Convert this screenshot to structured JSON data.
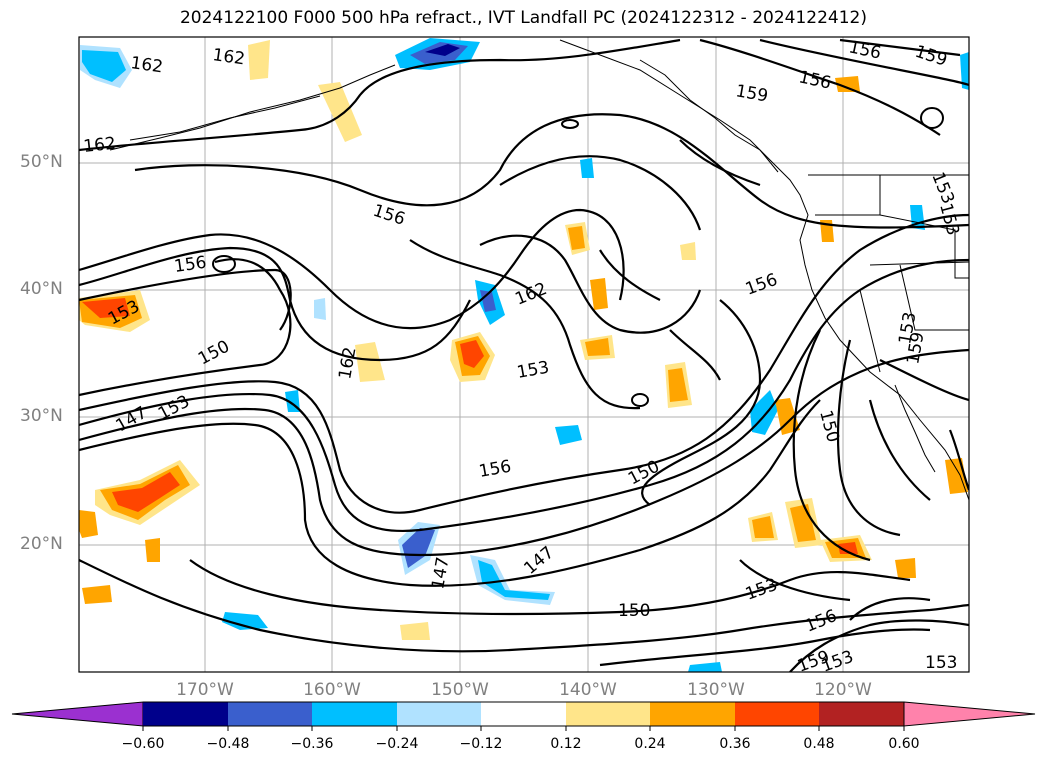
{
  "title": "2024122100 F000 500 hPa refract., IVT Landfall PC (2024122312 - 2024122412)",
  "lat_labels": [
    "50°N",
    "40°N",
    "30°N",
    "20°N"
  ],
  "lon_labels": [
    "170°W",
    "160°W",
    "150°W",
    "140°W",
    "130°W",
    "120°W"
  ],
  "colorbar": {
    "ticks": [
      "−0.60",
      "−0.48",
      "−0.36",
      "−0.24",
      "−0.12",
      "0.12",
      "0.24",
      "0.36",
      "0.48",
      "0.60"
    ],
    "colors": [
      "#9b30d0",
      "#00008b",
      "#3a5fcd",
      "#00bfff",
      "#b0e2ff",
      "#ffffff",
      "#ffe58a",
      "#ffa500",
      "#ff4500",
      "#b22222",
      "#ff82ab"
    ]
  },
  "contour_labels": [
    "162",
    "162",
    "162",
    "156",
    "159",
    "156",
    "159",
    "153",
    "156",
    "156",
    "162",
    "156",
    "153",
    "150",
    "153",
    "153",
    "162",
    "153",
    "150",
    "156",
    "150",
    "147",
    "147",
    "147",
    "153",
    "156",
    "159",
    "153",
    "150",
    "159",
    "153",
    "153"
  ]
}
